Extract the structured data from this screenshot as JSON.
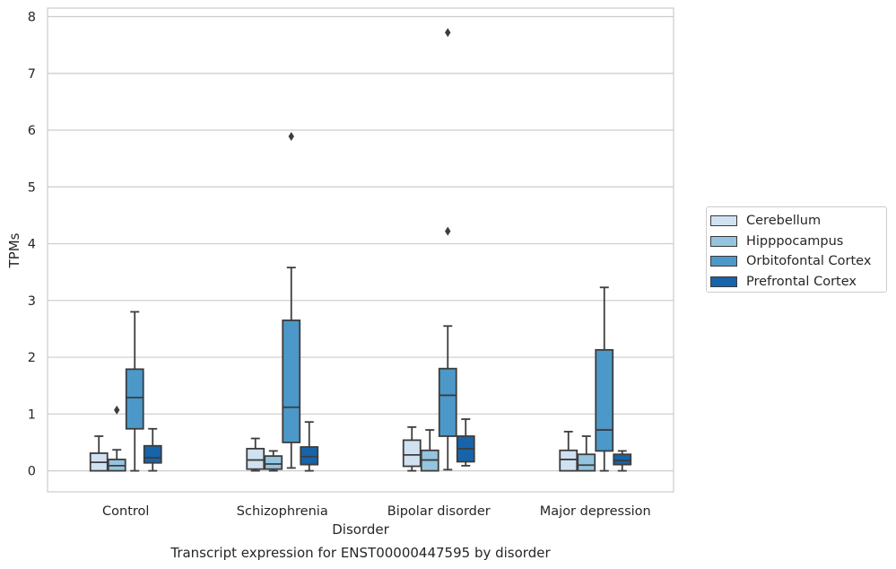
{
  "chart_data": {
    "type": "box",
    "title": "Transcript expression for ENST00000447595 by disorder",
    "xlabel": "Disorder",
    "ylabel": "TPMs",
    "ylim": [
      -0.37,
      8.15
    ],
    "yticks": [
      0,
      1,
      2,
      3,
      4,
      5,
      6,
      7,
      8
    ],
    "categories": [
      "Control",
      "Schizophrenia",
      "Bipolar disorder",
      "Major depression"
    ],
    "grid": true,
    "legend_position": "right",
    "series": [
      {
        "name": "Cerebellum",
        "color": "#d0e1f2",
        "boxes": [
          {
            "whislo": 0.0,
            "q1": 0.0,
            "med": 0.15,
            "q3": 0.31,
            "whishi": 0.61,
            "fliers": []
          },
          {
            "whislo": 0.0,
            "q1": 0.03,
            "med": 0.19,
            "q3": 0.39,
            "whishi": 0.57,
            "fliers": []
          },
          {
            "whislo": 0.0,
            "q1": 0.08,
            "med": 0.28,
            "q3": 0.54,
            "whishi": 0.77,
            "fliers": []
          },
          {
            "whislo": 0.0,
            "q1": 0.0,
            "med": 0.2,
            "q3": 0.36,
            "whishi": 0.69,
            "fliers": []
          }
        ]
      },
      {
        "name": "Hipppocampus",
        "color": "#94c4df",
        "boxes": [
          {
            "whislo": 0.0,
            "q1": 0.0,
            "med": 0.09,
            "q3": 0.2,
            "whishi": 0.37,
            "fliers": [
              1.07
            ]
          },
          {
            "whislo": 0.0,
            "q1": 0.03,
            "med": 0.12,
            "q3": 0.26,
            "whishi": 0.35,
            "fliers": []
          },
          {
            "whislo": 0.0,
            "q1": 0.0,
            "med": 0.19,
            "q3": 0.36,
            "whishi": 0.72,
            "fliers": []
          },
          {
            "whislo": 0.0,
            "q1": 0.0,
            "med": 0.1,
            "q3": 0.29,
            "whishi": 0.61,
            "fliers": []
          }
        ]
      },
      {
        "name": "Orbitofontal Cortex",
        "color": "#4b98c9",
        "boxes": [
          {
            "whislo": 0.0,
            "q1": 0.74,
            "med": 1.29,
            "q3": 1.79,
            "whishi": 2.8,
            "fliers": []
          },
          {
            "whislo": 0.05,
            "q1": 0.5,
            "med": 1.12,
            "q3": 2.65,
            "whishi": 3.58,
            "fliers": [
              5.89
            ]
          },
          {
            "whislo": 0.02,
            "q1": 0.61,
            "med": 1.33,
            "q3": 1.8,
            "whishi": 2.55,
            "fliers": [
              4.22,
              7.72
            ]
          },
          {
            "whislo": 0.0,
            "q1": 0.35,
            "med": 0.72,
            "q3": 2.13,
            "whishi": 3.23,
            "fliers": []
          }
        ]
      },
      {
        "name": "Prefrontal Cortex",
        "color": "#1764ab",
        "boxes": [
          {
            "whislo": 0.0,
            "q1": 0.14,
            "med": 0.23,
            "q3": 0.44,
            "whishi": 0.74,
            "fliers": []
          },
          {
            "whislo": 0.0,
            "q1": 0.11,
            "med": 0.25,
            "q3": 0.42,
            "whishi": 0.86,
            "fliers": []
          },
          {
            "whislo": 0.09,
            "q1": 0.16,
            "med": 0.39,
            "q3": 0.61,
            "whishi": 0.91,
            "fliers": []
          },
          {
            "whislo": 0.0,
            "q1": 0.11,
            "med": 0.18,
            "q3": 0.29,
            "whishi": 0.35,
            "fliers": []
          }
        ]
      }
    ]
  }
}
